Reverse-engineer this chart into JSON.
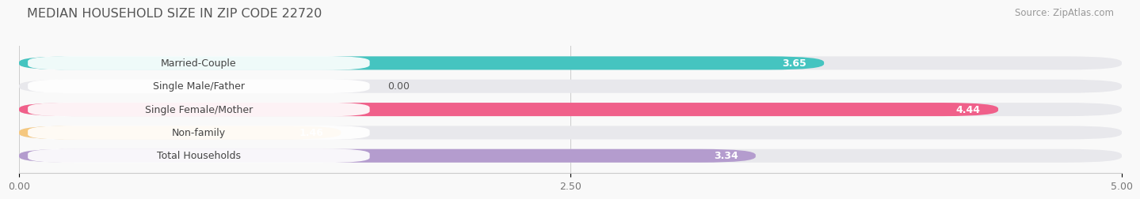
{
  "title": "MEDIAN HOUSEHOLD SIZE IN ZIP CODE 22720",
  "source": "Source: ZipAtlas.com",
  "categories": [
    "Married-Couple",
    "Single Male/Father",
    "Single Female/Mother",
    "Non-family",
    "Total Households"
  ],
  "values": [
    3.65,
    0.0,
    4.44,
    1.46,
    3.34
  ],
  "bar_colors": [
    "#45C4C0",
    "#A8BEE8",
    "#F0608A",
    "#F5C880",
    "#B49CCE"
  ],
  "bar_bg_color": "#E8E8EC",
  "xlim": [
    0,
    5.0
  ],
  "xticks": [
    0.0,
    2.5,
    5.0
  ],
  "xtick_labels": [
    "0.00",
    "2.50",
    "5.00"
  ],
  "title_fontsize": 11.5,
  "label_fontsize": 9,
  "value_fontsize": 9,
  "source_fontsize": 8.5,
  "bar_height": 0.58,
  "background_color": "#F9F9F9",
  "value_white_threshold": 0.5
}
